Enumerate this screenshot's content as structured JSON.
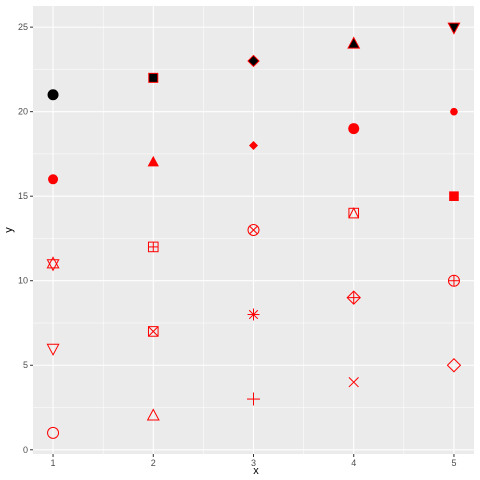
{
  "chart_data": {
    "type": "scatter",
    "title": "",
    "xlabel": "x",
    "ylabel": "y",
    "xlim": [
      0.8,
      5.2
    ],
    "ylim": [
      -0.25,
      26.25
    ],
    "x_ticks": [
      1,
      2,
      3,
      4,
      5
    ],
    "y_ticks": [
      0,
      5,
      10,
      15,
      20,
      25
    ],
    "grid": true,
    "legend": "none",
    "colors": {
      "points": "#ff0000",
      "outline": "#000000",
      "panel": "#ebebeb",
      "grid": "#ffffff"
    },
    "points": [
      {
        "x": 1,
        "y": 1,
        "shape": 1
      },
      {
        "x": 2,
        "y": 2,
        "shape": 2
      },
      {
        "x": 3,
        "y": 3,
        "shape": 3
      },
      {
        "x": 4,
        "y": 4,
        "shape": 4
      },
      {
        "x": 5,
        "y": 5,
        "shape": 5
      },
      {
        "x": 1,
        "y": 6,
        "shape": 6
      },
      {
        "x": 2,
        "y": 7,
        "shape": 7
      },
      {
        "x": 3,
        "y": 8,
        "shape": 8
      },
      {
        "x": 4,
        "y": 9,
        "shape": 9
      },
      {
        "x": 5,
        "y": 10,
        "shape": 10
      },
      {
        "x": 1,
        "y": 11,
        "shape": 11
      },
      {
        "x": 2,
        "y": 12,
        "shape": 12
      },
      {
        "x": 3,
        "y": 13,
        "shape": 13
      },
      {
        "x": 4,
        "y": 14,
        "shape": 14
      },
      {
        "x": 5,
        "y": 15,
        "shape": 15
      },
      {
        "x": 1,
        "y": 16,
        "shape": 16
      },
      {
        "x": 2,
        "y": 17,
        "shape": 17
      },
      {
        "x": 3,
        "y": 18,
        "shape": 18
      },
      {
        "x": 4,
        "y": 19,
        "shape": 19
      },
      {
        "x": 5,
        "y": 20,
        "shape": 20
      },
      {
        "x": 1,
        "y": 21,
        "shape": 21
      },
      {
        "x": 2,
        "y": 22,
        "shape": 22
      },
      {
        "x": 3,
        "y": 23,
        "shape": 23
      },
      {
        "x": 4,
        "y": 24,
        "shape": 24
      },
      {
        "x": 5,
        "y": 25,
        "shape": 25
      }
    ]
  }
}
